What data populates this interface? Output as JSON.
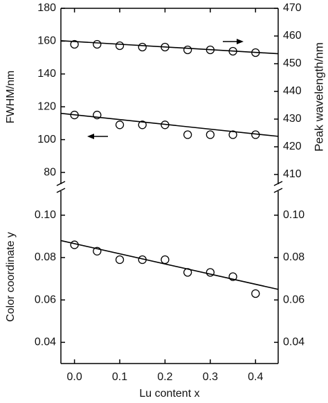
{
  "chart_data": [
    {
      "type": "scatter",
      "ylabel": "FWHM/nm",
      "y2label": "Peak wavelength/nm",
      "xlim": [
        -0.03,
        0.45
      ],
      "ylim": [
        72,
        180
      ],
      "yticks": [
        80,
        100,
        120,
        140,
        160,
        180
      ],
      "y2lim": [
        406,
        470
      ],
      "y2ticks": [
        410,
        420,
        430,
        440,
        450,
        460,
        470
      ],
      "x": [
        0,
        0.05,
        0.1,
        0.15,
        0.2,
        0.25,
        0.3,
        0.35,
        0.4
      ],
      "series": [
        {
          "axis": "y",
          "color": "#000000",
          "values": [
            115,
            115,
            109,
            109,
            109,
            103,
            103,
            103,
            103
          ],
          "fit": {
            "x": [
              -0.03,
              0.45
            ],
            "values": [
              116,
              102
            ]
          }
        },
        {
          "axis": "y2",
          "color": "#000000",
          "values": [
            457,
            457,
            456.5,
            456,
            456,
            455,
            455,
            454.5,
            454
          ],
          "fit": {
            "x": [
              -0.03,
              0.45
            ],
            "values": [
              458.3,
              453.6
            ]
          }
        }
      ]
    },
    {
      "type": "scatter",
      "xlabel": "Lu content x",
      "ylabel": "Color coordinate y",
      "xlim": [
        -0.03,
        0.45
      ],
      "xticks": [
        {
          "value": 0,
          "label": "0.0"
        },
        0.1,
        0.2,
        0.3,
        0.4
      ],
      "ylim": [
        0.03,
        0.112
      ],
      "yticks": [
        0.04,
        0.06,
        0.08,
        {
          "value": 0.1,
          "label": "0.10"
        }
      ],
      "y2ticks": [
        0.04,
        0.06,
        0.08,
        {
          "value": 0.1,
          "label": "0.10"
        }
      ],
      "x": [
        0,
        0.05,
        0.1,
        0.15,
        0.2,
        0.25,
        0.3,
        0.35,
        0.4
      ],
      "series": [
        {
          "axis": "y",
          "color": "#000000",
          "values": [
            0.086,
            0.083,
            0.079,
            0.079,
            0.079,
            0.073,
            0.073,
            0.071,
            0.063
          ],
          "fit": {
            "x": [
              -0.03,
              0.45
            ],
            "values": [
              0.088,
              0.065
            ]
          }
        }
      ]
    }
  ]
}
